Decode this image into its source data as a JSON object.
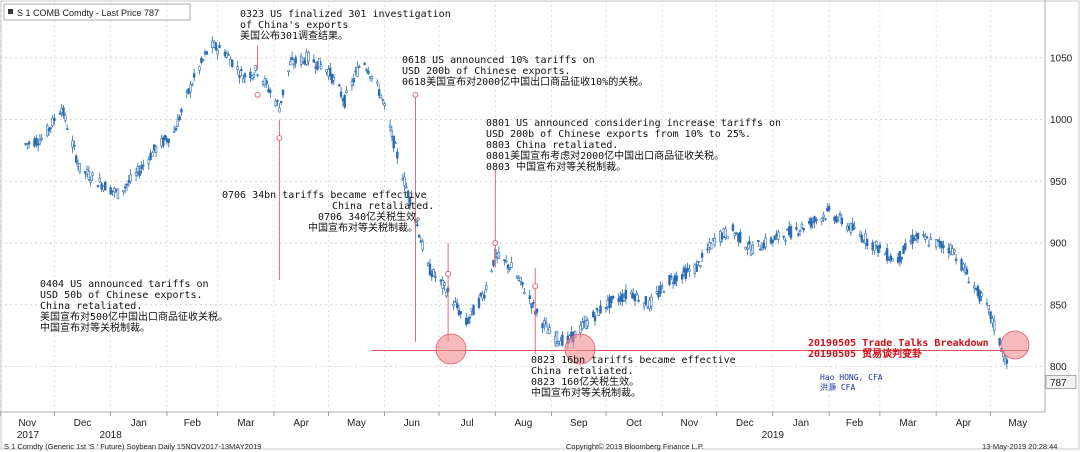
{
  "header": {
    "security": "S 1 COMB Comdty - Last Price 787",
    "last_price_badge": "787"
  },
  "footer": {
    "left": "S 1 Comdty (Generic 1st 'S ' Future) Soybean  Daily 15NOV2017-13MAY2019",
    "center": "Copyright© 2019 Bloomberg Finance L.P.",
    "right": "13-May-2019 20:28:44"
  },
  "annotations": [
    {
      "id": "a0323",
      "lines": [
        "0323 US finalized 301 investigation",
        "of China's exports",
        "美国公布301调查结果。"
      ]
    },
    {
      "id": "a0618",
      "lines": [
        "0618 US announced 10% tariffs on",
        "USD 200b of Chinese exports.",
        "0618美国宣布对2000亿中国出口商品征收10%的关税。"
      ]
    },
    {
      "id": "a0801",
      "lines": [
        "0801 US announced considering increase tariffs on",
        "USD 200b of Chinese exports from 10% to 25%.",
        "0803 China retaliated.",
        "0801美国宣布考虑对2000亿中国出口商品征收关税。",
        "0803 中国宣布对等关税制裁。"
      ]
    },
    {
      "id": "a0706",
      "lines": [
        "0706 34bn tariffs became effective",
        "China retaliated.",
        "0706 340亿关税生效。",
        "中国宣布对等关税制裁。"
      ]
    },
    {
      "id": "a0404",
      "lines": [
        "0404 US announced tariffs on",
        "USD 50b of Chinese exports.",
        "China retaliated.",
        "美国宣布对500亿中国出口商品征收关税。",
        "中国宣布对等关税制裁。"
      ]
    },
    {
      "id": "a0823",
      "lines": [
        "0823 16bn tariffs became effective",
        "China retaliated.",
        "0823 160亿关税生效。",
        "中国宣布对等关税制裁。"
      ]
    },
    {
      "id": "a0505",
      "lines": [
        "20190505 Trade Talks Breakdown",
        "20190505 贸易谈判变卦"
      ]
    }
  ],
  "author": [
    "Hao HONG, CFA",
    "洪灝 CFA"
  ],
  "colors": {
    "candle": "#2b6cb0",
    "event_line": "#e05a6a",
    "support_line": "#e0505a",
    "circle": "#f08a90",
    "accent_red": "#d0101a",
    "author_blue": "#1a35a8"
  },
  "chart_data": {
    "type": "line",
    "title": "S 1 COMB Comdty - Last Price",
    "ylim": [
      775,
      1085
    ],
    "y_ticks": [
      800,
      850,
      900,
      950,
      1000,
      1050
    ],
    "x_ticks": [
      "Nov",
      "Dec",
      "Jan",
      "Feb",
      "Mar",
      "Apr",
      "May",
      "Jun",
      "Jul",
      "Aug",
      "Sep",
      "Oct",
      "Nov",
      "Dec",
      "Jan",
      "Feb",
      "Mar",
      "Apr",
      "May"
    ],
    "year_labels": [
      "2017",
      "2018",
      "2019"
    ],
    "support_level": 813,
    "series": [
      {
        "values": [
          {
            "date": "2017-11-15",
            "close": 980
          },
          {
            "date": "2017-11-25",
            "close": 985
          },
          {
            "date": "2017-12-05",
            "close": 1010
          },
          {
            "date": "2017-12-15",
            "close": 960
          },
          {
            "date": "2017-12-25",
            "close": 950
          },
          {
            "date": "2018-01-05",
            "close": 940
          },
          {
            "date": "2018-01-15",
            "close": 955
          },
          {
            "date": "2018-01-25",
            "close": 975
          },
          {
            "date": "2018-02-05",
            "close": 990
          },
          {
            "date": "2018-02-15",
            "close": 1030
          },
          {
            "date": "2018-02-25",
            "close": 1060
          },
          {
            "date": "2018-03-05",
            "close": 1055
          },
          {
            "date": "2018-03-15",
            "close": 1035
          },
          {
            "date": "2018-03-23",
            "close": 1040
          },
          {
            "date": "2018-04-04",
            "close": 1010
          },
          {
            "date": "2018-04-10",
            "close": 1045
          },
          {
            "date": "2018-04-20",
            "close": 1050
          },
          {
            "date": "2018-05-01",
            "close": 1040
          },
          {
            "date": "2018-05-10",
            "close": 1015
          },
          {
            "date": "2018-05-20",
            "close": 1050
          },
          {
            "date": "2018-05-30",
            "close": 1020
          },
          {
            "date": "2018-06-10",
            "close": 960
          },
          {
            "date": "2018-06-18",
            "close": 920
          },
          {
            "date": "2018-06-25",
            "close": 880
          },
          {
            "date": "2018-07-06",
            "close": 860
          },
          {
            "date": "2018-07-16",
            "close": 835
          },
          {
            "date": "2018-07-26",
            "close": 860
          },
          {
            "date": "2018-08-01",
            "close": 890
          },
          {
            "date": "2018-08-10",
            "close": 880
          },
          {
            "date": "2018-08-20",
            "close": 855
          },
          {
            "date": "2018-08-23",
            "close": 845
          },
          {
            "date": "2018-09-01",
            "close": 825
          },
          {
            "date": "2018-09-10",
            "close": 820
          },
          {
            "date": "2018-09-20",
            "close": 835
          },
          {
            "date": "2018-10-01",
            "close": 850
          },
          {
            "date": "2018-10-15",
            "close": 860
          },
          {
            "date": "2018-10-25",
            "close": 850
          },
          {
            "date": "2018-11-05",
            "close": 870
          },
          {
            "date": "2018-11-20",
            "close": 880
          },
          {
            "date": "2018-12-01",
            "close": 905
          },
          {
            "date": "2018-12-10",
            "close": 910
          },
          {
            "date": "2018-12-20",
            "close": 895
          },
          {
            "date": "2019-01-05",
            "close": 905
          },
          {
            "date": "2019-01-20",
            "close": 915
          },
          {
            "date": "2019-02-01",
            "close": 925
          },
          {
            "date": "2019-02-15",
            "close": 910
          },
          {
            "date": "2019-03-01",
            "close": 895
          },
          {
            "date": "2019-03-10",
            "close": 885
          },
          {
            "date": "2019-03-20",
            "close": 905
          },
          {
            "date": "2019-04-01",
            "close": 900
          },
          {
            "date": "2019-04-10",
            "close": 895
          },
          {
            "date": "2019-04-20",
            "close": 870
          },
          {
            "date": "2019-04-30",
            "close": 845
          },
          {
            "date": "2019-05-06",
            "close": 820
          },
          {
            "date": "2019-05-13",
            "close": 787
          }
        ]
      }
    ]
  }
}
